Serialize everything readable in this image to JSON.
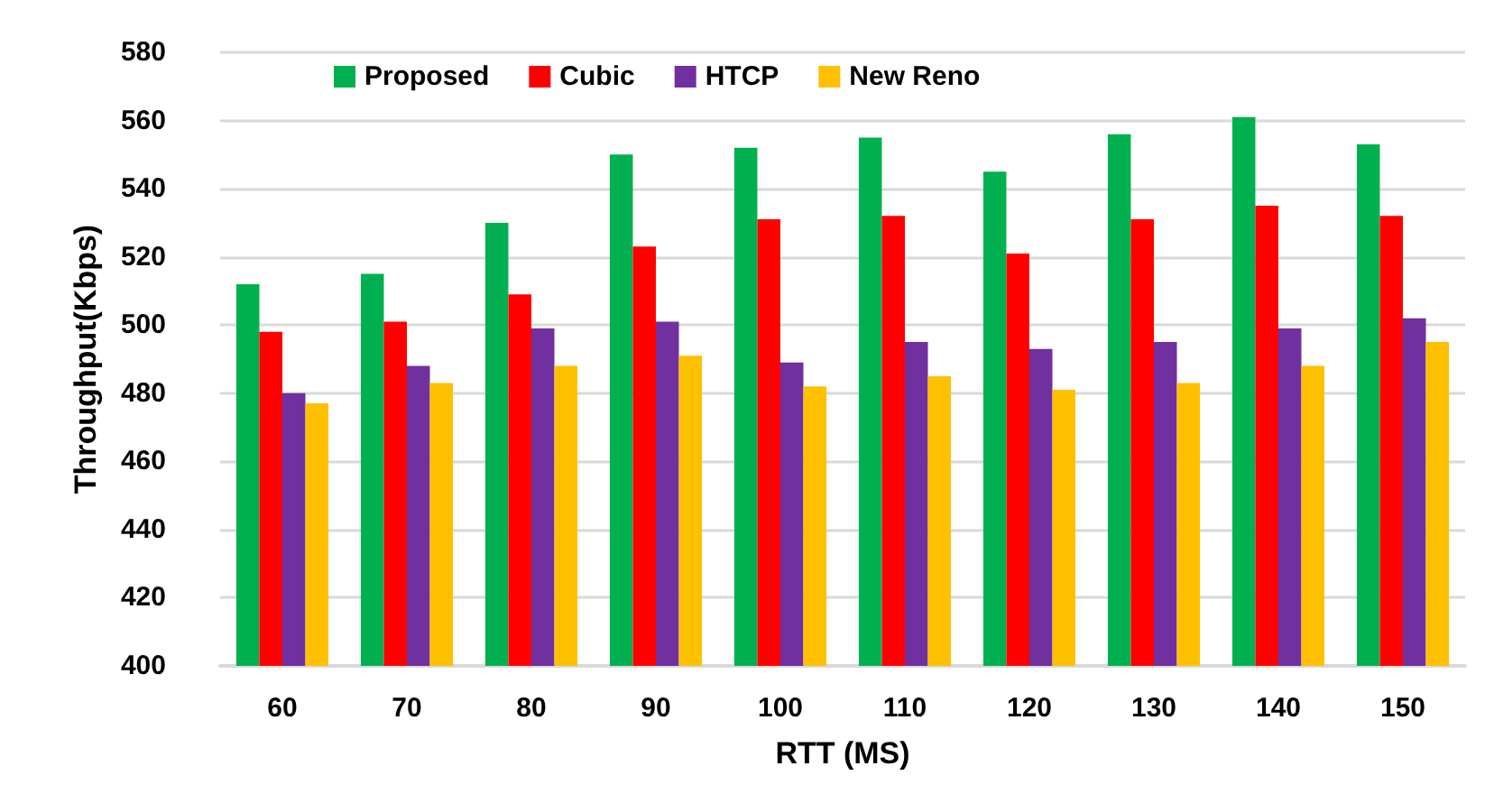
{
  "chart_data": {
    "type": "bar",
    "xlabel": "RTT (MS)",
    "ylabel": "Throughput(Kbps)",
    "categories": [
      "60",
      "70",
      "80",
      "90",
      "100",
      "110",
      "120",
      "130",
      "140",
      "150"
    ],
    "series": [
      {
        "name": "Proposed",
        "color": "#00b050",
        "values": [
          512,
          515,
          530,
          550,
          552,
          555,
          545,
          556,
          561,
          553
        ]
      },
      {
        "name": "Cubic",
        "color": "#ff0000",
        "values": [
          498,
          501,
          509,
          523,
          531,
          532,
          521,
          531,
          535,
          532
        ]
      },
      {
        "name": "HTCP",
        "color": "#7030a0",
        "values": [
          480,
          488,
          499,
          501,
          489,
          495,
          493,
          495,
          499,
          502
        ]
      },
      {
        "name": "New Reno",
        "color": "#ffc000",
        "values": [
          477,
          483,
          488,
          491,
          482,
          485,
          481,
          483,
          488,
          495
        ]
      }
    ],
    "ylim": [
      400,
      580
    ],
    "yticks": [
      400,
      420,
      440,
      460,
      480,
      500,
      520,
      540,
      560,
      580
    ],
    "grid": "y",
    "legend": "top"
  }
}
